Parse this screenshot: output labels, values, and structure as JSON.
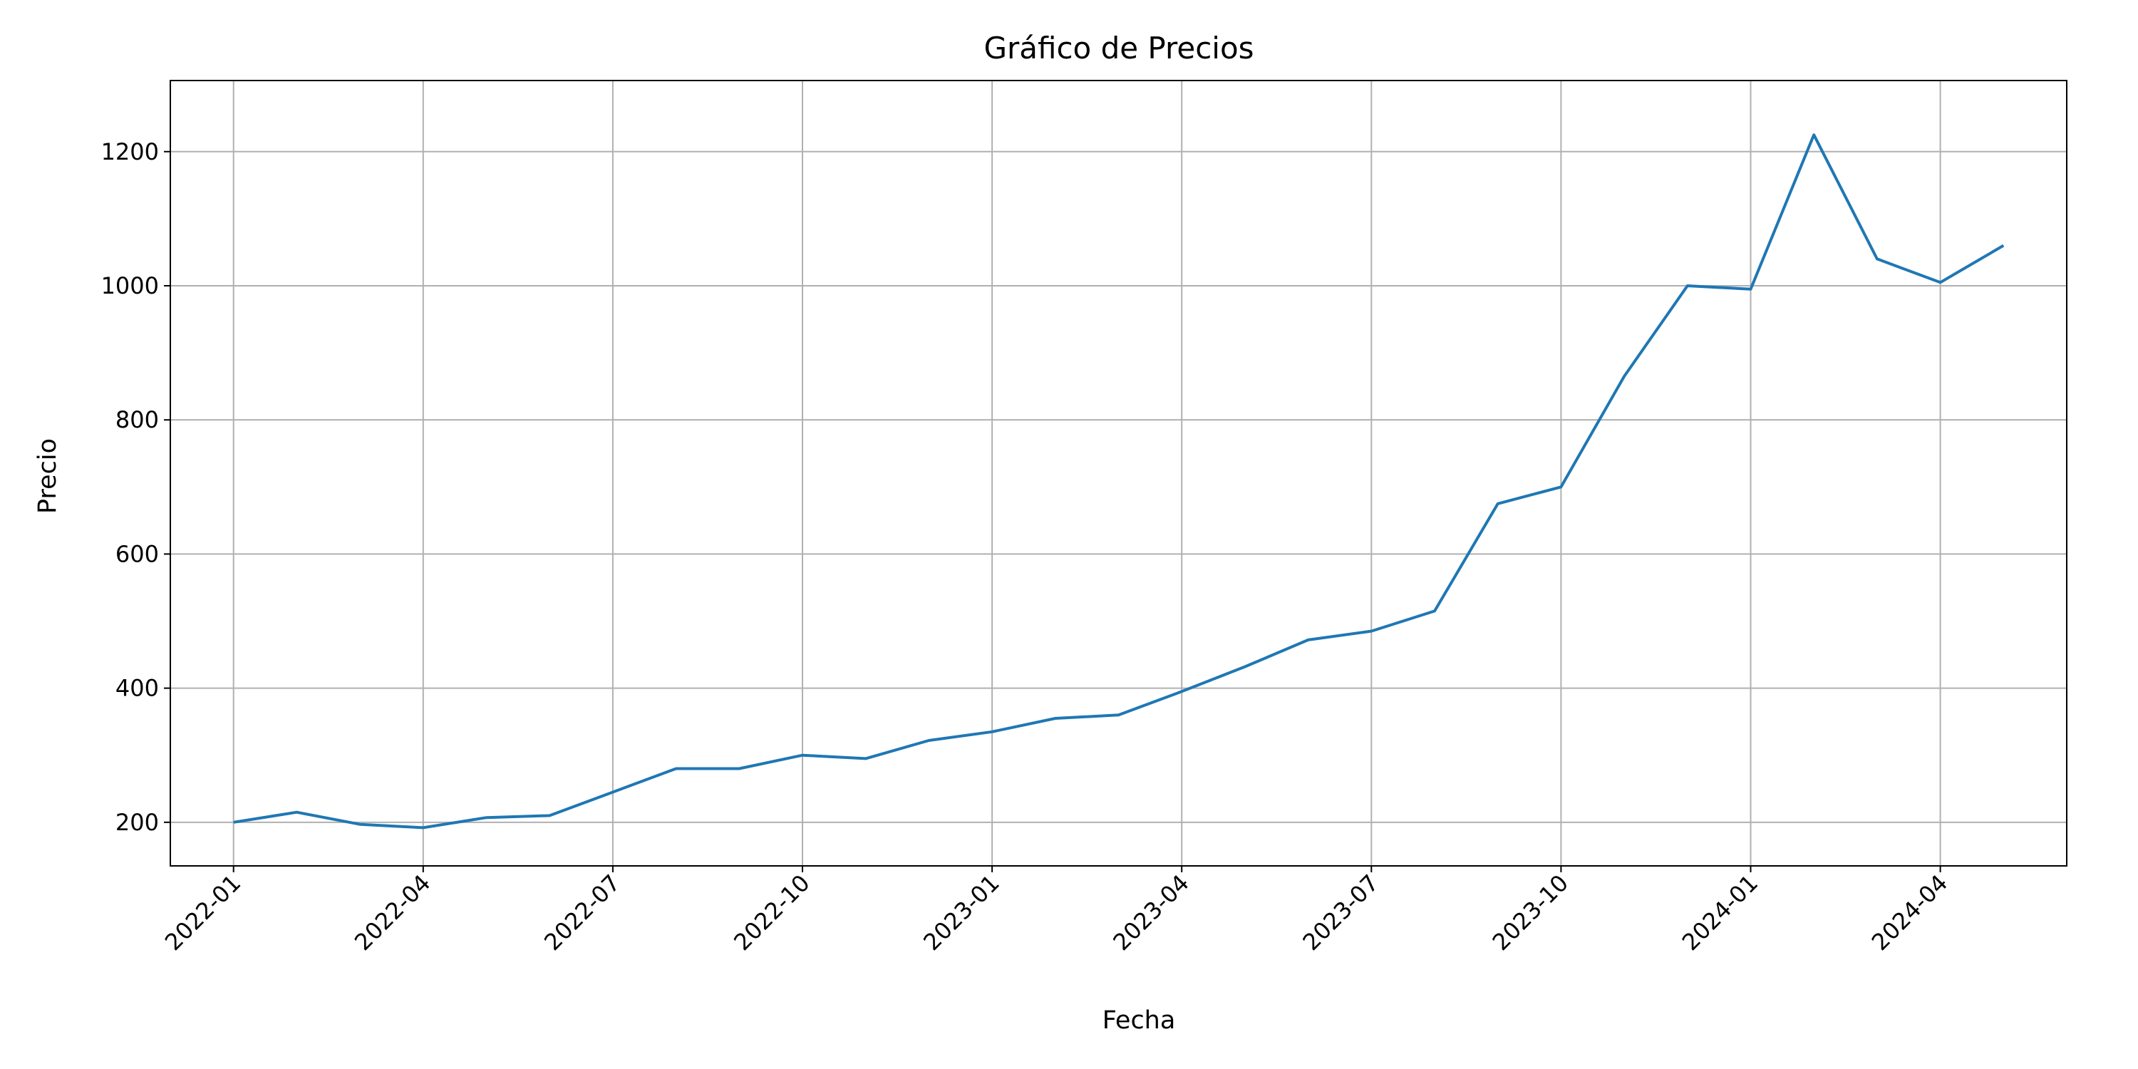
{
  "chart_data": {
    "type": "line",
    "title": "Gráfico de Precios",
    "x_label": "Fecha",
    "y_label": "Precio",
    "x": [
      "2022-01",
      "2022-02",
      "2022-03",
      "2022-04",
      "2022-05",
      "2022-06",
      "2022-07",
      "2022-08",
      "2022-09",
      "2022-10",
      "2022-11",
      "2022-12",
      "2023-01",
      "2023-02",
      "2023-03",
      "2023-04",
      "2023-05",
      "2023-06",
      "2023-07",
      "2023-08",
      "2023-09",
      "2023-10",
      "2023-11",
      "2023-12",
      "2024-01",
      "2024-02",
      "2024-03",
      "2024-04",
      "2024-05"
    ],
    "values": [
      200,
      215,
      197,
      192,
      207,
      210,
      245,
      280,
      280,
      300,
      295,
      322,
      335,
      355,
      360,
      395,
      432,
      472,
      485,
      515,
      675,
      700,
      865,
      1000,
      995,
      1225,
      1040,
      1005,
      1060
    ],
    "color": "#1f77b4",
    "xlim": [
      "2021-12",
      "2024-06"
    ],
    "xticks": [
      "2022-01",
      "2022-04",
      "2022-07",
      "2022-10",
      "2023-01",
      "2023-04",
      "2023-07",
      "2023-10",
      "2024-01",
      "2024-04"
    ],
    "ylim": [
      135,
      1306
    ],
    "yticks": [
      200,
      400,
      600,
      800,
      1000,
      1200
    ],
    "grid": true
  }
}
